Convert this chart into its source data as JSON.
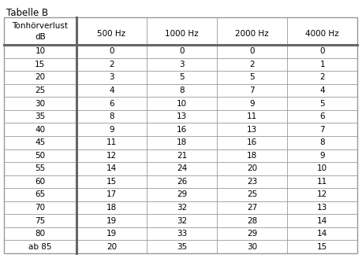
{
  "title": "Tabelle B",
  "header_line1": "Tonhörverlust",
  "header_line2": "dB",
  "freq_labels": [
    "500 Hz",
    "1000 Hz",
    "2000 Hz",
    "4000 Hz"
  ],
  "rows": [
    [
      "10",
      "0",
      "0",
      "0",
      "0"
    ],
    [
      "15",
      "2",
      "3",
      "2",
      "1"
    ],
    [
      "20",
      "3",
      "5",
      "5",
      "2"
    ],
    [
      "25",
      "4",
      "8",
      "7",
      "4"
    ],
    [
      "30",
      "6",
      "10",
      "9",
      "5"
    ],
    [
      "35",
      "8",
      "13",
      "11",
      "6"
    ],
    [
      "40",
      "9",
      "16",
      "13",
      "7"
    ],
    [
      "45",
      "11",
      "18",
      "16",
      "8"
    ],
    [
      "50",
      "12",
      "21",
      "18",
      "9"
    ],
    [
      "55",
      "14",
      "24",
      "20",
      "10"
    ],
    [
      "60",
      "15",
      "26",
      "23",
      "11"
    ],
    [
      "65",
      "17",
      "29",
      "25",
      "12"
    ],
    [
      "70",
      "18",
      "32",
      "27",
      "13"
    ],
    [
      "75",
      "19",
      "32",
      "28",
      "14"
    ],
    [
      "80",
      "19",
      "33",
      "29",
      "14"
    ],
    [
      "ab 85",
      "20",
      "35",
      "30",
      "15"
    ]
  ],
  "border_color": "#999999",
  "thick_border_color": "#666666",
  "font_size": 7.5,
  "title_font_size": 8.5,
  "header_font_size": 7.5,
  "bg_color": "#ffffff"
}
